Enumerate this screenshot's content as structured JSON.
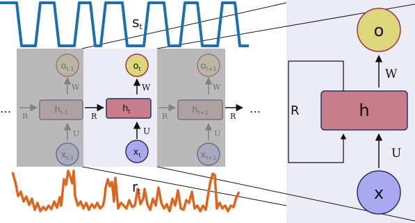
{
  "colors": {
    "signal_s": "#1a6fb5",
    "signal_r": "#e0651c",
    "output_node": "#dcd77a",
    "hidden_node": "#c77e8a",
    "input_node": "#aaa8ee",
    "panel_bg": "#ececf7",
    "faded_panel": "#b9b9b9",
    "node_stroke_active": "#2a2f6b",
    "node_stroke_output": "#a0304a"
  },
  "labels": {
    "s_signal": {
      "base": "s",
      "sub": "t"
    },
    "r_signal": {
      "base": "r",
      "sub": "t"
    },
    "ellipsis_left": "…",
    "ellipsis_right": "…",
    "cells": [
      {
        "output": {
          "base": "o",
          "sub": "t-1"
        },
        "hidden": {
          "base": "h",
          "sub": "t-1"
        },
        "input": {
          "base": "x",
          "sub": "t-1"
        },
        "w": "W",
        "u": "U",
        "r_in": "R",
        "faded": true
      },
      {
        "output": {
          "base": "o",
          "sub": "t"
        },
        "hidden": {
          "base": "h",
          "sub": "t"
        },
        "input": {
          "base": "x",
          "sub": "t"
        },
        "w": "W",
        "u": "U",
        "r_in": "R",
        "faded": false
      },
      {
        "output": {
          "base": "o",
          "sub": "t+1"
        },
        "hidden": {
          "base": "h",
          "sub": "t+1"
        },
        "input": {
          "base": "x",
          "sub": "t+1"
        },
        "w": "W",
        "u": "U",
        "r_in": "R",
        "faded": true
      }
    ],
    "r_after": "R",
    "detail": {
      "output": "o",
      "hidden": "h",
      "input": "x",
      "w": "W",
      "u": "U",
      "r": "R"
    }
  }
}
